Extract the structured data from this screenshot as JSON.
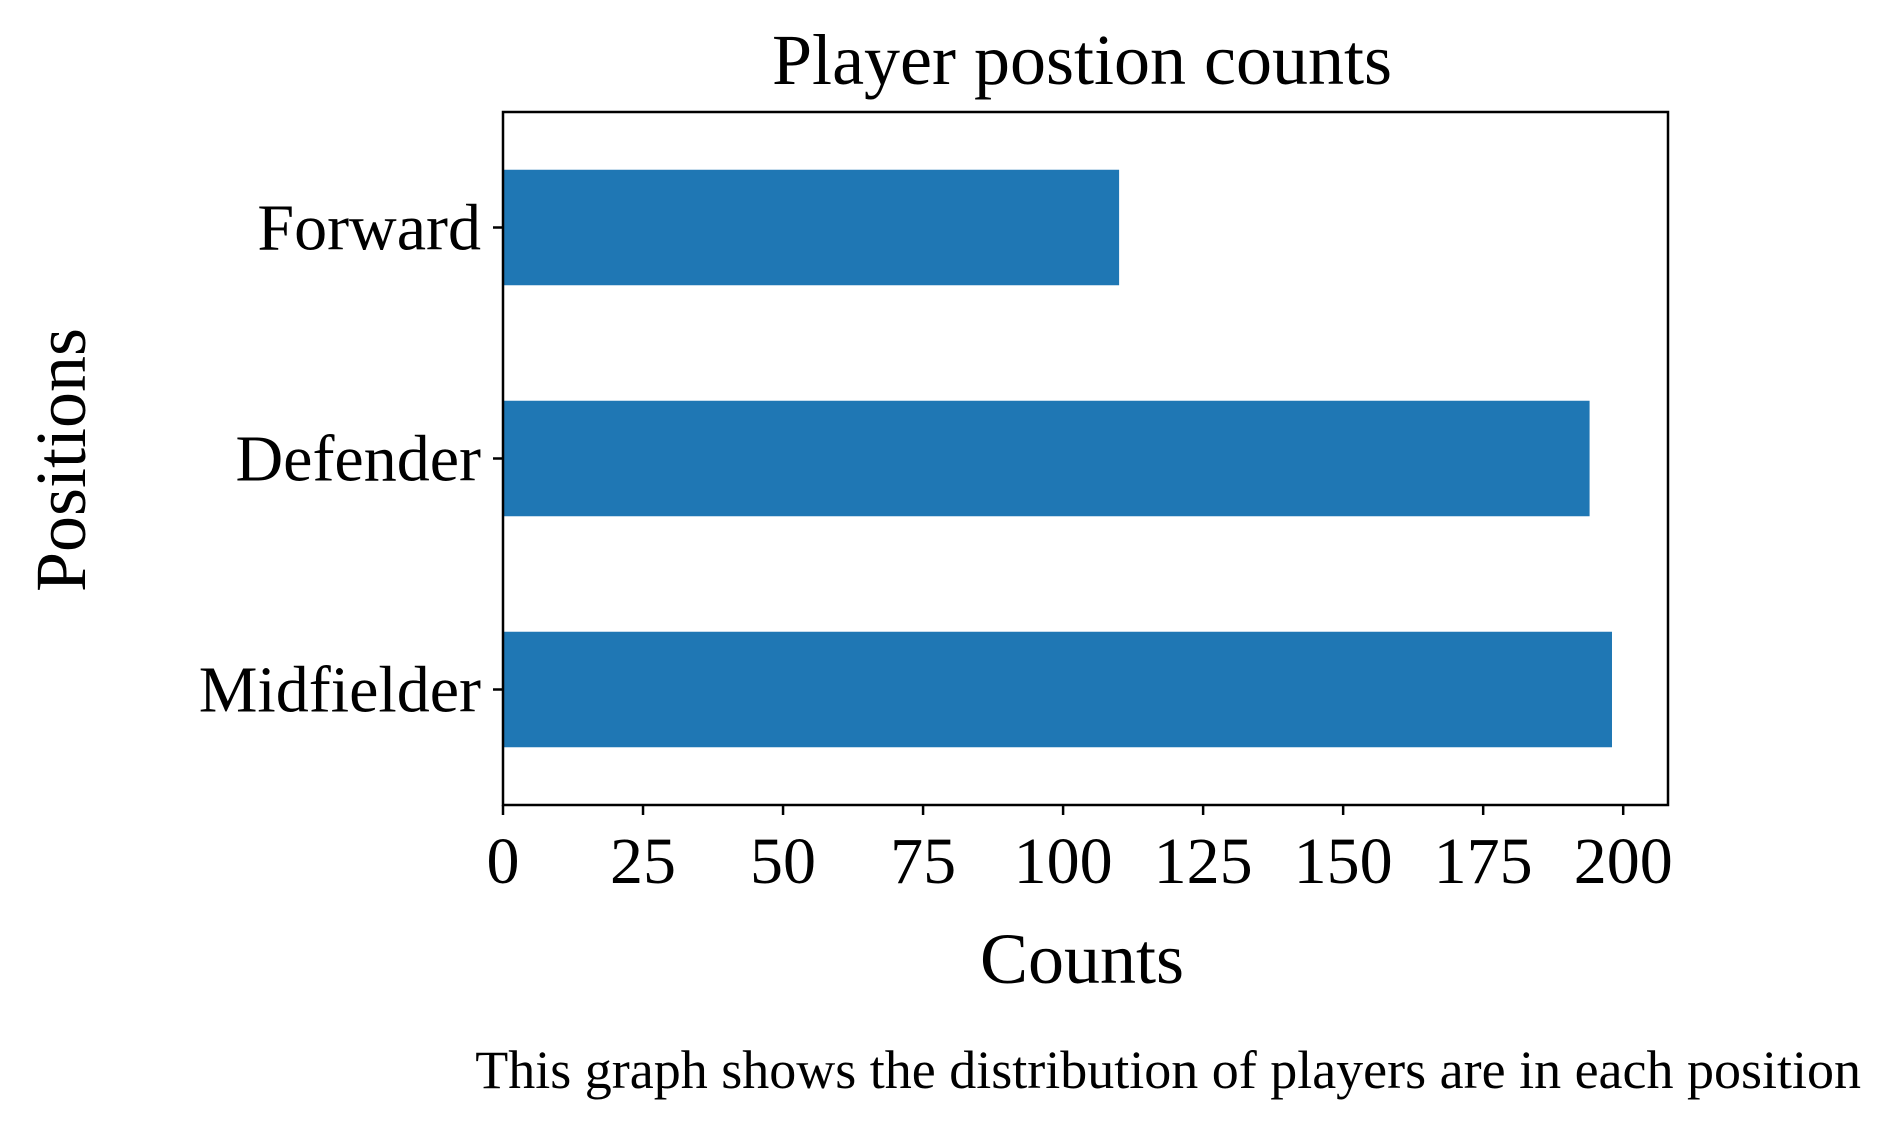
{
  "chart_data": {
    "type": "bar",
    "orientation": "horizontal",
    "title": "Player postion counts",
    "xlabel": "Counts",
    "ylabel": "Positions",
    "categories": [
      "Forward",
      "Defender",
      "Midfielder"
    ],
    "values": [
      110,
      194,
      198
    ],
    "xlim": [
      0,
      208
    ],
    "xticks": [
      "0",
      "25",
      "50",
      "75",
      "100",
      "125",
      "150",
      "175",
      "200"
    ],
    "bar_color": "#1f77b4",
    "grid": false,
    "legend": "none",
    "caption": "This graph shows the distribution of players are in each position"
  }
}
